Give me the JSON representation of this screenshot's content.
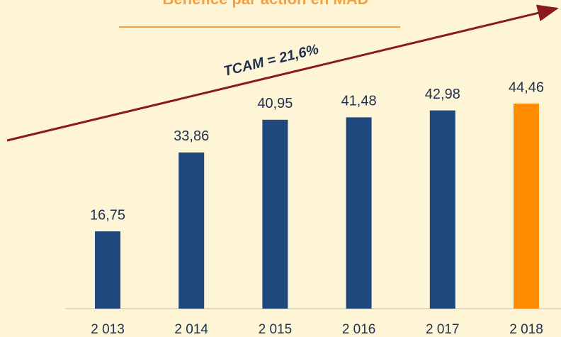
{
  "chart_data": {
    "type": "bar",
    "title": "Bénéfice par action en MAD",
    "annotation": "TCAM = 21,6%",
    "categories": [
      "2 013",
      "2 014",
      "2 015",
      "2 016",
      "2 017",
      "2 018"
    ],
    "values": [
      16.75,
      33.86,
      40.95,
      41.48,
      42.98,
      44.46
    ],
    "value_labels": [
      "16,75",
      "33,86",
      "40,95",
      "41,48",
      "42,98",
      "44,46"
    ],
    "colors": [
      "#1f497d",
      "#1f497d",
      "#1f497d",
      "#1f497d",
      "#1f497d",
      "#ff8c00"
    ]
  }
}
